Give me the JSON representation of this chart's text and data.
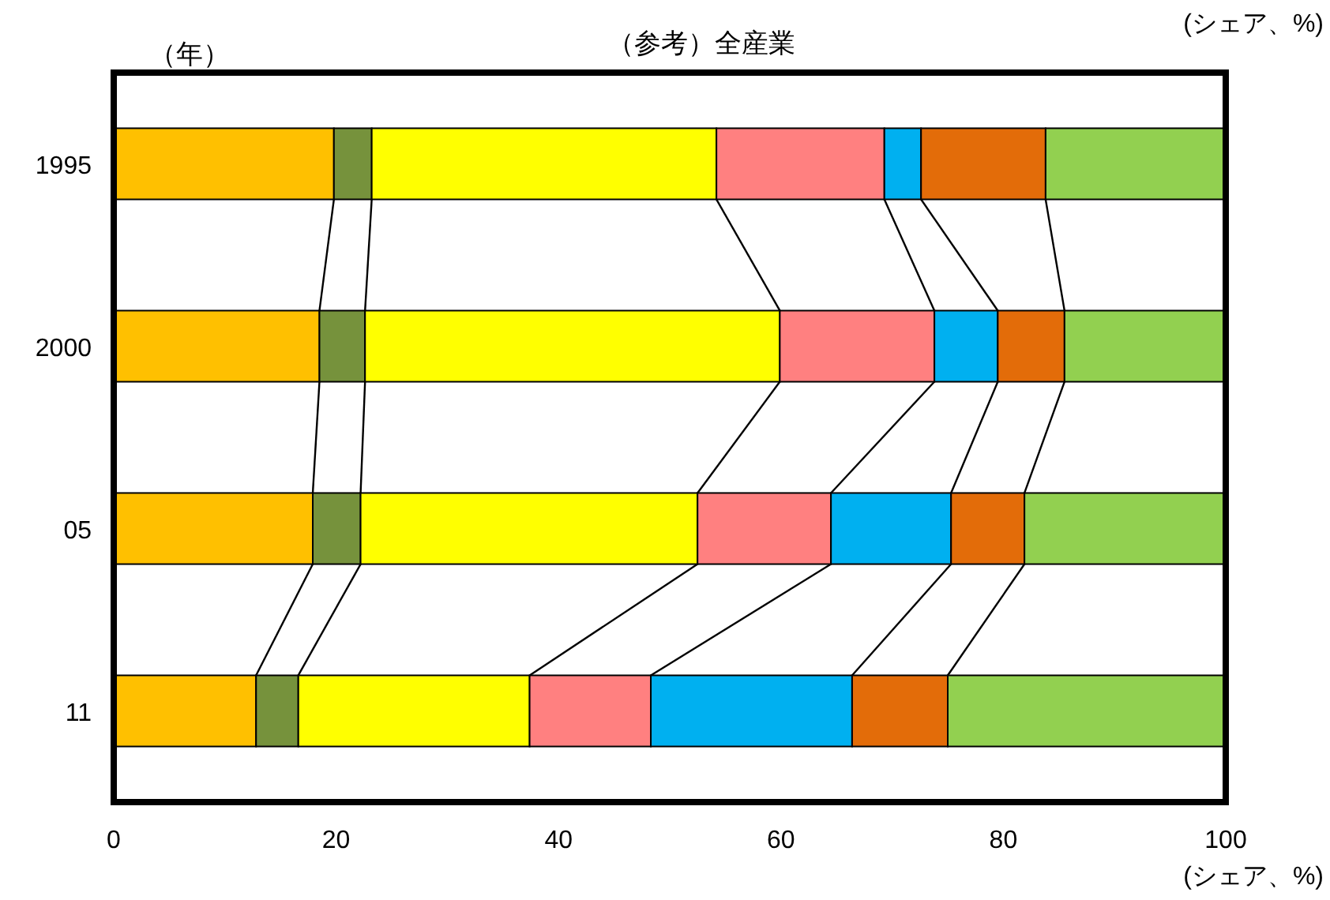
{
  "chart_data": {
    "type": "bar",
    "orientation": "horizontal",
    "stacked": true,
    "title": "（参考）全産業",
    "xlabel": "(シェア、%)",
    "annotations": [
      "（年）",
      "(シェア、%)"
    ],
    "categories": [
      "1995",
      "2000",
      "05",
      "11"
    ],
    "xlim": [
      0,
      100
    ],
    "xticks": [
      0,
      20,
      40,
      60,
      80,
      100
    ],
    "grid": false,
    "series": [
      {
        "color": "#ffc000",
        "values": [
          19.8,
          18.5,
          17.9,
          12.8
        ]
      },
      {
        "color": "#76923c",
        "values": [
          3.4,
          4.1,
          4.3,
          3.8
        ]
      },
      {
        "color": "#ffff00",
        "values": [
          31.0,
          37.3,
          30.3,
          20.8
        ]
      },
      {
        "color": "#ff8080",
        "values": [
          15.1,
          13.9,
          12.0,
          10.9
        ]
      },
      {
        "color": "#00b0f0",
        "values": [
          3.3,
          5.7,
          10.8,
          18.1
        ]
      },
      {
        "color": "#e36c09",
        "values": [
          11.2,
          6.0,
          6.6,
          8.6
        ]
      },
      {
        "color": "#92d050",
        "values": [
          16.2,
          14.5,
          18.1,
          25.0
        ]
      }
    ]
  }
}
